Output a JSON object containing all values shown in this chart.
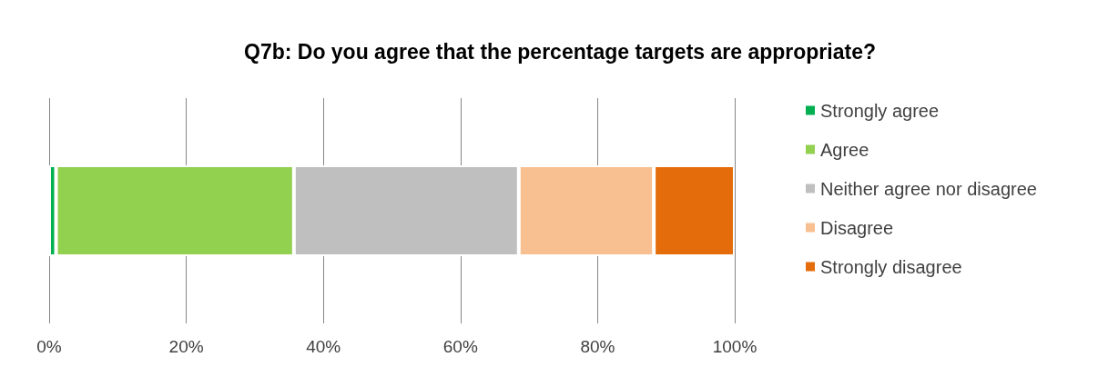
{
  "chart_data": {
    "type": "bar",
    "title": "Q7b: Do you agree that the percentage targets are appropriate?",
    "orientation": "horizontal",
    "stacked": true,
    "categories": [
      null
    ],
    "series": [
      {
        "name": "Strongly agree",
        "color": "#00b050",
        "values": [
          1.0
        ]
      },
      {
        "name": "Agree",
        "color": "#92d050",
        "values": [
          34.7
        ]
      },
      {
        "name": "Neither agree nor disagree",
        "color": "#bfbfbf",
        "values": [
          32.8
        ]
      },
      {
        "name": "Disagree",
        "color": "#f8c091",
        "values": [
          19.7
        ]
      },
      {
        "name": "Strongly disagree",
        "color": "#e46c0a",
        "values": [
          11.8
        ]
      }
    ],
    "xlim": [
      0,
      100
    ],
    "xticks": [
      {
        "value": 0,
        "label": "0%"
      },
      {
        "value": 20,
        "label": "20%"
      },
      {
        "value": 40,
        "label": "40%"
      },
      {
        "value": 60,
        "label": "60%"
      },
      {
        "value": 80,
        "label": "80%"
      },
      {
        "value": 100,
        "label": "100%"
      }
    ],
    "grid": "x",
    "legend": "right"
  }
}
